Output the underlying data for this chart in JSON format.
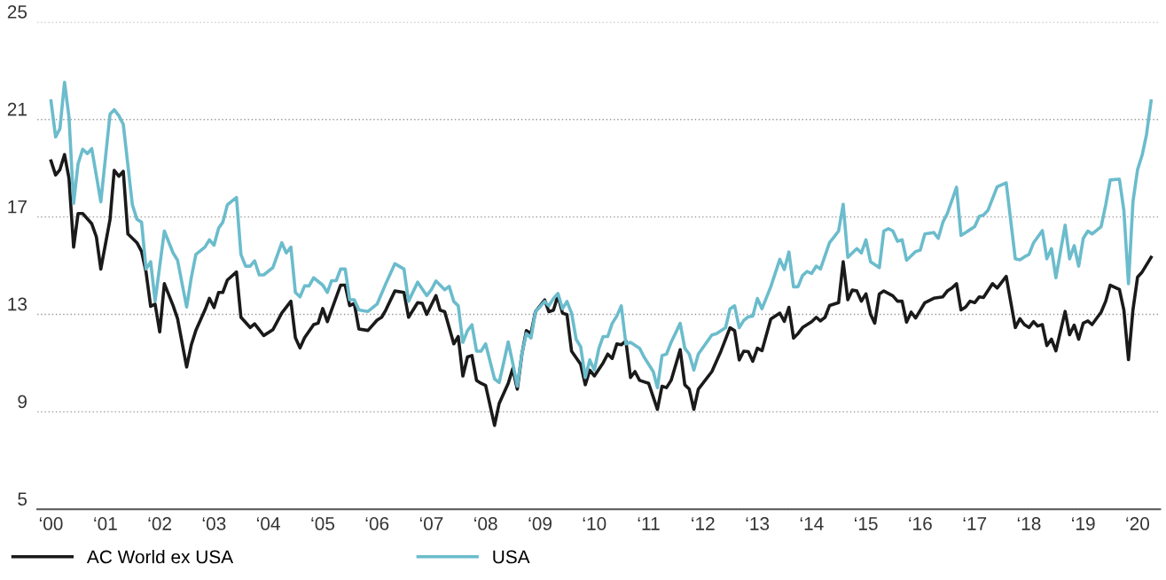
{
  "chart_data": {
    "type": "line",
    "xlim": [
      "1999-10",
      "2020-06"
    ],
    "xticks": [
      {
        "value": "2000",
        "label": "‘00"
      },
      {
        "value": "2001",
        "label": "‘01"
      },
      {
        "value": "2002",
        "label": "‘02"
      },
      {
        "value": "2003",
        "label": "‘03"
      },
      {
        "value": "2004",
        "label": "‘04"
      },
      {
        "value": "2005",
        "label": "‘05"
      },
      {
        "value": "2006",
        "label": "‘06"
      },
      {
        "value": "2007",
        "label": "‘07"
      },
      {
        "value": "2008",
        "label": "‘08"
      },
      {
        "value": "2009",
        "label": "‘09"
      },
      {
        "value": "2010",
        "label": "‘10"
      },
      {
        "value": "2011",
        "label": "‘11"
      },
      {
        "value": "2012",
        "label": "‘12"
      },
      {
        "value": "2013",
        "label": "‘13"
      },
      {
        "value": "2014",
        "label": "‘14"
      },
      {
        "value": "2015",
        "label": "‘15"
      },
      {
        "value": "2016",
        "label": "‘16"
      },
      {
        "value": "2017",
        "label": "‘17"
      },
      {
        "value": "2018",
        "label": "‘18"
      },
      {
        "value": "2019",
        "label": "‘19"
      },
      {
        "value": "2020",
        "label": "‘20"
      }
    ],
    "ylim": [
      5,
      25
    ],
    "yticks": [
      5,
      9,
      13,
      17,
      21,
      25
    ],
    "grid": "y",
    "legend": "bottom left",
    "line_style": "solid",
    "series": [
      {
        "name": "AC World ex USA",
        "color": "#1a1a1a",
        "x": [
          "2000-01",
          "2000-02",
          "2000-03",
          "2000-04",
          "2000-05",
          "2000-06",
          "2000-07",
          "2000-08",
          "2000-10",
          "2000-11",
          "2000-12",
          "2001-02",
          "2001-03",
          "2001-04",
          "2001-05",
          "2001-06",
          "2001-08",
          "2001-09",
          "2001-10",
          "2001-11",
          "2001-12",
          "2002-01",
          "2002-02",
          "2002-04",
          "2002-05",
          "2002-07",
          "2002-08",
          "2002-09",
          "2002-11",
          "2002-12",
          "2003-01",
          "2003-02",
          "2003-03",
          "2003-04",
          "2003-06",
          "2003-07",
          "2003-09",
          "2003-10",
          "2003-12",
          "2004-02",
          "2004-04",
          "2004-06",
          "2004-07",
          "2004-08",
          "2004-09",
          "2004-11",
          "2004-12",
          "2005-01",
          "2005-02",
          "2005-05",
          "2005-06",
          "2005-07",
          "2005-08",
          "2005-09",
          "2005-11",
          "2006-01",
          "2006-02",
          "2006-03",
          "2006-05",
          "2006-07",
          "2006-08",
          "2006-10",
          "2006-11",
          "2006-12",
          "2007-02",
          "2007-03",
          "2007-04",
          "2007-06",
          "2007-07",
          "2007-08",
          "2007-09",
          "2007-10",
          "2007-11",
          "2007-12",
          "2008-01",
          "2008-03",
          "2008-04",
          "2008-06",
          "2008-07",
          "2008-08",
          "2008-09",
          "2008-10",
          "2008-11",
          "2008-12",
          "2009-02",
          "2009-03",
          "2009-04",
          "2009-05",
          "2009-06",
          "2009-07",
          "2009-08",
          "2009-10",
          "2009-11",
          "2009-12",
          "2010-01",
          "2010-03",
          "2010-04",
          "2010-05",
          "2010-06",
          "2010-07",
          "2010-08",
          "2010-09",
          "2010-10",
          "2010-11",
          "2011-01",
          "2011-03",
          "2011-04",
          "2011-05",
          "2011-06",
          "2011-08",
          "2011-09",
          "2011-10",
          "2011-11",
          "2011-12",
          "2012-03",
          "2012-05",
          "2012-07",
          "2012-08",
          "2012-09",
          "2012-10",
          "2012-11",
          "2012-12",
          "2013-01",
          "2013-02",
          "2013-04",
          "2013-06",
          "2013-07",
          "2013-08",
          "2013-09",
          "2013-10",
          "2013-11",
          "2014-01",
          "2014-02",
          "2014-03",
          "2014-04",
          "2014-05",
          "2014-07",
          "2014-08",
          "2014-09",
          "2014-10",
          "2014-11",
          "2014-12",
          "2015-01",
          "2015-02",
          "2015-03",
          "2015-04",
          "2015-05",
          "2015-07",
          "2015-08",
          "2015-09",
          "2015-10",
          "2015-11",
          "2015-12",
          "2016-02",
          "2016-04",
          "2016-06",
          "2016-07",
          "2016-08",
          "2016-09",
          "2016-10",
          "2016-11",
          "2016-12",
          "2017-01",
          "2017-02",
          "2017-03",
          "2017-05",
          "2017-06",
          "2017-08",
          "2017-10",
          "2017-11",
          "2017-12",
          "2018-01",
          "2018-02",
          "2018-03",
          "2018-04",
          "2018-05",
          "2018-06",
          "2018-07",
          "2018-09",
          "2018-10",
          "2018-11",
          "2018-12",
          "2019-01",
          "2019-02",
          "2019-03",
          "2019-05",
          "2019-06",
          "2019-07",
          "2019-09",
          "2019-10",
          "2019-11",
          "2019-12",
          "2020-01",
          "2020-02",
          "2020-04"
        ],
        "values": [
          19.3,
          18.72,
          18.94,
          19.56,
          18.58,
          15.76,
          17.14,
          17.14,
          16.72,
          16.18,
          14.86,
          16.9,
          18.91,
          18.67,
          18.87,
          16.3,
          15.94,
          15.58,
          14.74,
          13.33,
          13.42,
          12.28,
          14.26,
          13.36,
          12.82,
          10.84,
          11.74,
          12.34,
          13.18,
          13.66,
          13.28,
          13.9,
          13.9,
          14.41,
          14.74,
          12.88,
          12.46,
          12.61,
          12.13,
          12.37,
          13.06,
          13.54,
          12.04,
          11.62,
          12.04,
          12.58,
          12.64,
          13.24,
          12.7,
          14.2,
          14.2,
          13.36,
          13.45,
          12.4,
          12.34,
          12.76,
          12.88,
          13.18,
          13.96,
          13.9,
          12.88,
          13.48,
          13.45,
          13.0,
          13.77,
          13.17,
          13.11,
          11.79,
          12.09,
          10.47,
          11.25,
          11.31,
          10.29,
          10.17,
          10.08,
          8.44,
          9.34,
          10.17,
          10.77,
          9.93,
          11.37,
          12.33,
          12.21,
          13.11,
          13.59,
          13.11,
          13.17,
          13.77,
          13.05,
          12.99,
          11.49,
          10.95,
          10.11,
          10.71,
          10.47,
          11.01,
          11.37,
          11.19,
          11.79,
          11.75,
          11.91,
          10.41,
          10.65,
          10.29,
          10.17,
          9.1,
          10.05,
          9.99,
          10.29,
          11.55,
          10.11,
          9.93,
          9.1,
          9.93,
          10.65,
          11.49,
          12.45,
          12.33,
          11.13,
          11.49,
          11.47,
          11.07,
          11.61,
          11.51,
          12.81,
          13.05,
          12.71,
          13.29,
          12.03,
          12.21,
          12.46,
          12.7,
          12.88,
          12.73,
          12.88,
          13.36,
          13.48,
          15.16,
          13.6,
          14.0,
          13.96,
          13.54,
          13.84,
          13.0,
          12.64,
          13.84,
          13.96,
          13.76,
          13.54,
          13.54,
          12.68,
          13.09,
          12.85,
          13.48,
          13.66,
          13.72,
          13.96,
          14.08,
          14.26,
          13.18,
          13.3,
          13.54,
          13.48,
          13.72,
          13.69,
          14.26,
          14.08,
          14.56,
          12.46,
          12.82,
          12.58,
          12.46,
          12.7,
          12.52,
          12.58,
          11.72,
          11.98,
          11.5,
          13.12,
          12.16,
          12.56,
          11.98,
          12.64,
          12.73,
          12.58,
          13.09,
          13.54,
          14.2,
          14.02,
          13.18,
          11.14,
          13.18,
          14.53,
          14.74,
          15.34
        ]
      },
      {
        "name": "USA",
        "color": "#6bbccc",
        "x": [
          "2000-01",
          "2000-02",
          "2000-03",
          "2000-04",
          "2000-05",
          "2000-06",
          "2000-07",
          "2000-08",
          "2000-09",
          "2000-10",
          "2000-12",
          "2001-02",
          "2001-03",
          "2001-04",
          "2001-05",
          "2001-07",
          "2001-08",
          "2001-09",
          "2001-10",
          "2001-11",
          "2001-12",
          "2002-02",
          "2002-04",
          "2002-05",
          "2002-07",
          "2002-08",
          "2002-09",
          "2002-11",
          "2002-12",
          "2003-01",
          "2003-02",
          "2003-03",
          "2003-04",
          "2003-06",
          "2003-07",
          "2003-08",
          "2003-09",
          "2003-10",
          "2003-11",
          "2003-12",
          "2004-02",
          "2004-04",
          "2004-05",
          "2004-06",
          "2004-07",
          "2004-08",
          "2004-09",
          "2004-10",
          "2004-11",
          "2005-01",
          "2005-02",
          "2005-03",
          "2005-04",
          "2005-05",
          "2005-06",
          "2005-07",
          "2005-08",
          "2005-09",
          "2005-11",
          "2006-01",
          "2006-03",
          "2006-05",
          "2006-07",
          "2006-08",
          "2006-10",
          "2006-12",
          "2007-01",
          "2007-02",
          "2007-04",
          "2007-05",
          "2007-06",
          "2007-07",
          "2007-08",
          "2007-09",
          "2007-10",
          "2007-11",
          "2007-12",
          "2008-01",
          "2008-03",
          "2008-04",
          "2008-05",
          "2008-06",
          "2008-07",
          "2008-08",
          "2008-09",
          "2008-10",
          "2008-11",
          "2008-12",
          "2009-02",
          "2009-03",
          "2009-04",
          "2009-05",
          "2009-06",
          "2009-07",
          "2009-08",
          "2009-09",
          "2009-10",
          "2009-11",
          "2009-12",
          "2010-01",
          "2010-02",
          "2010-03",
          "2010-04",
          "2010-05",
          "2010-06",
          "2010-07",
          "2010-08",
          "2010-09",
          "2010-11",
          "2010-12",
          "2011-02",
          "2011-03",
          "2011-04",
          "2011-05",
          "2011-06",
          "2011-08",
          "2011-09",
          "2011-10",
          "2011-11",
          "2011-12",
          "2012-03",
          "2012-04",
          "2012-06",
          "2012-07",
          "2012-08",
          "2012-09",
          "2012-10",
          "2012-11",
          "2012-12",
          "2013-01",
          "2013-02",
          "2013-04",
          "2013-06",
          "2013-07",
          "2013-08",
          "2013-09",
          "2013-10",
          "2013-11",
          "2013-12",
          "2014-01",
          "2014-02",
          "2014-03",
          "2014-05",
          "2014-06",
          "2014-07",
          "2014-08",
          "2014-09",
          "2014-10",
          "2014-11",
          "2014-12",
          "2015-01",
          "2015-02",
          "2015-04",
          "2015-05",
          "2015-06",
          "2015-07",
          "2015-08",
          "2015-09",
          "2015-10",
          "2015-11",
          "2015-12",
          "2016-01",
          "2016-02",
          "2016-04",
          "2016-05",
          "2016-06",
          "2016-07",
          "2016-09",
          "2016-10",
          "2016-11",
          "2016-12",
          "2017-01",
          "2017-02",
          "2017-03",
          "2017-04",
          "2017-06",
          "2017-08",
          "2017-10",
          "2017-11",
          "2017-12",
          "2018-01",
          "2018-02",
          "2018-04",
          "2018-05",
          "2018-06",
          "2018-07",
          "2018-09",
          "2018-10",
          "2018-11",
          "2018-12",
          "2019-01",
          "2019-02",
          "2019-03",
          "2019-05",
          "2019-06",
          "2019-07",
          "2019-09",
          "2019-10",
          "2019-11",
          "2019-12",
          "2020-01",
          "2020-02",
          "2020-03",
          "2020-04"
        ],
        "values": [
          21.76,
          20.28,
          20.62,
          22.53,
          21.1,
          17.56,
          19.18,
          19.78,
          19.6,
          19.8,
          17.62,
          21.22,
          21.4,
          21.16,
          20.8,
          17.5,
          16.9,
          16.78,
          14.86,
          15.16,
          13.54,
          16.42,
          15.52,
          15.22,
          13.3,
          14.5,
          15.46,
          15.76,
          16.06,
          15.84,
          16.54,
          16.78,
          17.5,
          17.8,
          15.46,
          14.98,
          14.98,
          15.2,
          14.62,
          14.62,
          14.92,
          15.94,
          15.52,
          15.76,
          13.9,
          13.72,
          14.17,
          14.17,
          14.5,
          14.2,
          13.9,
          14.38,
          14.38,
          14.86,
          14.86,
          13.6,
          13.6,
          13.18,
          13.12,
          13.42,
          14.26,
          15.08,
          14.86,
          13.54,
          14.32,
          13.77,
          14.01,
          14.37,
          14.01,
          14.15,
          13.53,
          13.35,
          11.85,
          12.33,
          12.57,
          11.49,
          11.49,
          11.79,
          10.35,
          10.2,
          11.01,
          11.87,
          11.01,
          10.05,
          11.37,
          12.21,
          12.03,
          13.11,
          13.53,
          13.35,
          13.65,
          13.86,
          13.23,
          13.53,
          13.05,
          11.97,
          11.67,
          10.41,
          11.13,
          10.71,
          11.61,
          12.09,
          12.09,
          12.63,
          12.93,
          13.35,
          11.79,
          11.85,
          11.61,
          11.25,
          10.65,
          9.99,
          11.31,
          11.37,
          11.85,
          12.63,
          11.61,
          11.37,
          10.71,
          11.37,
          12.15,
          12.21,
          12.45,
          13.23,
          13.35,
          12.45,
          12.75,
          12.9,
          12.93,
          13.65,
          13.23,
          14.13,
          15.26,
          14.84,
          15.56,
          14.13,
          14.13,
          14.6,
          14.76,
          14.68,
          14.98,
          14.86,
          15.94,
          16.18,
          16.42,
          17.52,
          15.34,
          15.52,
          15.7,
          15.52,
          16.06,
          15.16,
          14.92,
          16.42,
          16.52,
          16.42,
          16.0,
          16.06,
          15.22,
          15.4,
          15.58,
          15.64,
          16.3,
          16.36,
          16.12,
          16.78,
          17.14,
          18.22,
          16.24,
          16.36,
          16.48,
          16.6,
          17.02,
          17.08,
          17.28,
          18.24,
          18.4,
          15.28,
          15.24,
          15.36,
          15.46,
          15.94,
          16.44,
          15.28,
          15.7,
          14.5,
          16.66,
          15.28,
          15.82,
          14.98,
          16.12,
          16.42,
          16.3,
          16.6,
          17.5,
          18.52,
          18.55,
          17.26,
          14.26,
          17.62,
          18.94,
          19.54,
          20.38,
          21.76
        ]
      }
    ]
  }
}
